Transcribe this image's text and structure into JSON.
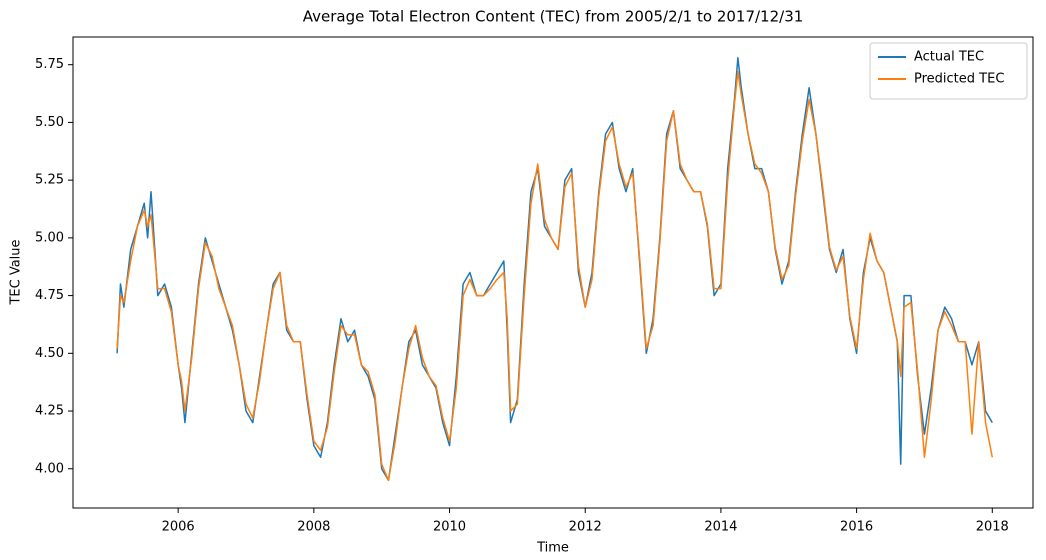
{
  "chart_data": {
    "type": "line",
    "title": "Average Total Electron Content (TEC) from 2005/2/1 to 2017/12/31",
    "x_label": "Time",
    "y_label": "TEC Value",
    "x": [
      2005.1,
      2005.15,
      2005.2,
      2005.3,
      2005.4,
      2005.5,
      2005.55,
      2005.6,
      2005.7,
      2005.8,
      2005.9,
      2006.0,
      2006.05,
      2006.1,
      2006.2,
      2006.3,
      2006.4,
      2006.5,
      2006.6,
      2006.7,
      2006.8,
      2006.9,
      2007.0,
      2007.1,
      2007.2,
      2007.3,
      2007.4,
      2007.5,
      2007.6,
      2007.7,
      2007.8,
      2007.9,
      2008.0,
      2008.1,
      2008.2,
      2008.3,
      2008.4,
      2008.5,
      2008.6,
      2008.7,
      2008.8,
      2008.9,
      2009.0,
      2009.1,
      2009.2,
      2009.3,
      2009.4,
      2009.5,
      2009.6,
      2009.7,
      2009.8,
      2009.9,
      2010.0,
      2010.1,
      2010.2,
      2010.3,
      2010.4,
      2010.5,
      2010.6,
      2010.7,
      2010.8,
      2010.85,
      2010.9,
      2011.0,
      2011.1,
      2011.2,
      2011.3,
      2011.4,
      2011.5,
      2011.6,
      2011.7,
      2011.8,
      2011.9,
      2012.0,
      2012.1,
      2012.2,
      2012.3,
      2012.4,
      2012.5,
      2012.6,
      2012.7,
      2012.8,
      2012.9,
      2013.0,
      2013.1,
      2013.2,
      2013.3,
      2013.4,
      2013.5,
      2013.6,
      2013.7,
      2013.8,
      2013.9,
      2014.0,
      2014.1,
      2014.2,
      2014.25,
      2014.3,
      2014.4,
      2014.5,
      2014.6,
      2014.7,
      2014.8,
      2014.9,
      2015.0,
      2015.1,
      2015.2,
      2015.3,
      2015.4,
      2015.5,
      2015.6,
      2015.7,
      2015.8,
      2015.9,
      2016.0,
      2016.1,
      2016.2,
      2016.3,
      2016.4,
      2016.5,
      2016.6,
      2016.65,
      2016.7,
      2016.8,
      2016.9,
      2017.0,
      2017.1,
      2017.2,
      2017.3,
      2017.4,
      2017.5,
      2017.6,
      2017.7,
      2017.8,
      2017.9,
      2018.0
    ],
    "series": [
      {
        "name": "Actual TEC",
        "color": "#1f77b4",
        "values": [
          4.5,
          4.8,
          4.7,
          4.95,
          5.05,
          5.15,
          5.0,
          5.2,
          4.75,
          4.8,
          4.7,
          4.45,
          4.35,
          4.2,
          4.5,
          4.8,
          5.0,
          4.9,
          4.8,
          4.7,
          4.6,
          4.45,
          4.25,
          4.2,
          4.4,
          4.6,
          4.8,
          4.85,
          4.6,
          4.55,
          4.55,
          4.3,
          4.1,
          4.05,
          4.2,
          4.45,
          4.65,
          4.55,
          4.6,
          4.45,
          4.4,
          4.3,
          4.0,
          3.95,
          4.15,
          4.35,
          4.55,
          4.6,
          4.45,
          4.4,
          4.35,
          4.2,
          4.1,
          4.4,
          4.8,
          4.85,
          4.75,
          4.75,
          4.8,
          4.85,
          4.9,
          4.6,
          4.2,
          4.3,
          4.8,
          5.2,
          5.3,
          5.05,
          5.0,
          4.95,
          5.25,
          5.3,
          4.85,
          4.7,
          4.85,
          5.2,
          5.45,
          5.5,
          5.3,
          5.2,
          5.3,
          4.9,
          4.5,
          4.65,
          5.0,
          5.45,
          5.55,
          5.3,
          5.25,
          5.2,
          5.2,
          5.05,
          4.75,
          4.8,
          5.3,
          5.6,
          5.78,
          5.65,
          5.45,
          5.3,
          5.3,
          5.2,
          4.95,
          4.8,
          4.9,
          5.2,
          5.45,
          5.65,
          5.45,
          5.2,
          4.95,
          4.85,
          4.95,
          4.65,
          4.5,
          4.85,
          5.0,
          4.9,
          4.85,
          4.7,
          4.55,
          4.02,
          4.75,
          4.75,
          4.4,
          4.15,
          4.35,
          4.6,
          4.7,
          4.65,
          4.55,
          4.55,
          4.45,
          4.55,
          4.25,
          4.2
        ]
      },
      {
        "name": "Predicted TEC",
        "color": "#ff7f0e",
        "values": [
          4.52,
          4.75,
          4.72,
          4.9,
          5.05,
          5.12,
          5.05,
          5.1,
          4.78,
          4.78,
          4.68,
          4.45,
          4.38,
          4.25,
          4.48,
          4.78,
          4.98,
          4.92,
          4.78,
          4.7,
          4.62,
          4.45,
          4.28,
          4.22,
          4.38,
          4.6,
          4.78,
          4.85,
          4.62,
          4.55,
          4.55,
          4.32,
          4.12,
          4.08,
          4.18,
          4.42,
          4.62,
          4.58,
          4.58,
          4.45,
          4.42,
          4.32,
          4.02,
          3.95,
          4.12,
          4.35,
          4.52,
          4.62,
          4.48,
          4.4,
          4.36,
          4.22,
          4.12,
          4.35,
          4.75,
          4.82,
          4.75,
          4.75,
          4.78,
          4.82,
          4.85,
          4.65,
          4.25,
          4.28,
          4.75,
          5.15,
          5.32,
          5.08,
          5.0,
          4.95,
          5.22,
          5.28,
          4.88,
          4.7,
          4.82,
          5.18,
          5.42,
          5.48,
          5.32,
          5.22,
          5.28,
          4.92,
          4.52,
          4.62,
          4.98,
          5.42,
          5.55,
          5.32,
          5.25,
          5.2,
          5.2,
          5.06,
          4.78,
          4.78,
          5.25,
          5.58,
          5.72,
          5.62,
          5.45,
          5.32,
          5.28,
          5.2,
          4.96,
          4.82,
          4.88,
          5.18,
          5.42,
          5.6,
          5.45,
          5.22,
          4.96,
          4.86,
          4.92,
          4.66,
          4.52,
          4.82,
          5.02,
          4.9,
          4.85,
          4.7,
          4.55,
          4.4,
          4.7,
          4.72,
          4.42,
          4.05,
          4.3,
          4.6,
          4.68,
          4.62,
          4.55,
          4.55,
          4.15,
          4.55,
          4.2,
          4.05
        ]
      }
    ],
    "xlim": [
      2004.45,
      2018.6
    ],
    "xticks": [
      2006,
      2008,
      2010,
      2012,
      2014,
      2016,
      2018
    ],
    "ylim": [
      3.83,
      5.87
    ],
    "yticks": [
      {
        "value": 4,
        "label": "4.00"
      },
      {
        "value": 4.25,
        "label": "4.25"
      },
      {
        "value": 4.5,
        "label": "4.50"
      },
      {
        "value": 4.75,
        "label": "4.75"
      },
      {
        "value": 5,
        "label": "5.00"
      },
      {
        "value": 5.25,
        "label": "5.25"
      },
      {
        "value": 5.5,
        "label": "5.50"
      },
      {
        "value": 5.75,
        "label": "5.75"
      }
    ],
    "grid": false,
    "legend": "upper right"
  }
}
